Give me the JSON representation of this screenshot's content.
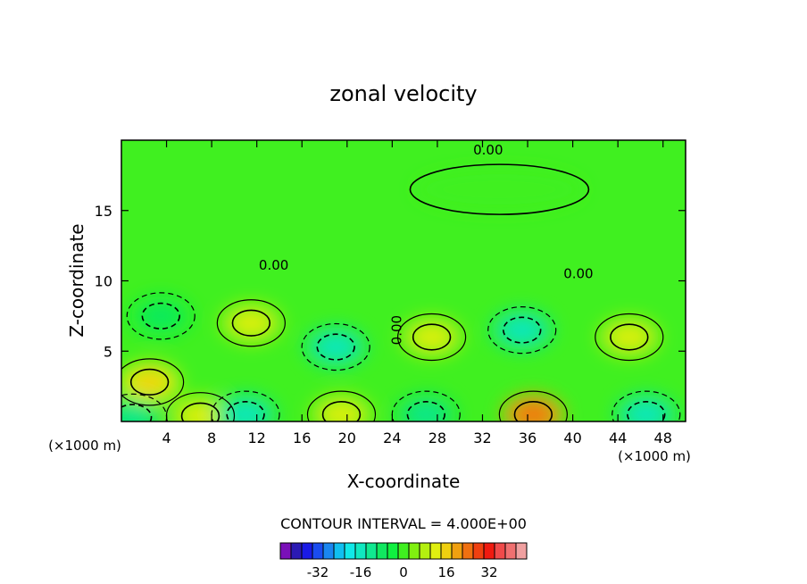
{
  "chart_data": {
    "type": "heatmap",
    "title": "zonal velocity",
    "xlabel": "X-coordinate",
    "ylabel": "Z-coordinate",
    "x_unit": "(×1000 m)",
    "xlim": [
      0,
      50
    ],
    "ylim": [
      0,
      20
    ],
    "x_ticks": [
      4,
      8,
      12,
      16,
      20,
      24,
      28,
      32,
      36,
      40,
      44,
      48
    ],
    "y_ticks": [
      5,
      10,
      15
    ],
    "contour_labels": [
      {
        "text": "0.00",
        "x": 32.5,
        "y": 19.0
      },
      {
        "text": "0.00",
        "x": 13.5,
        "y": 10.8
      },
      {
        "text": "0.00",
        "x": 40.5,
        "y": 10.2
      },
      {
        "text": "0.00",
        "x": 24.8,
        "y": 6.5
      }
    ],
    "features": [
      {
        "kind": "max",
        "x": 11.5,
        "y": 7.0,
        "value": 8
      },
      {
        "kind": "max",
        "x": 27.5,
        "y": 6.0,
        "value": 8
      },
      {
        "kind": "max",
        "x": 45.0,
        "y": 6.0,
        "value": 8
      },
      {
        "kind": "max",
        "x": 2.5,
        "y": 2.8,
        "value": 12
      },
      {
        "kind": "max",
        "x": 36.5,
        "y": 0.5,
        "value": 20
      },
      {
        "kind": "max",
        "x": 19.5,
        "y": 0.5,
        "value": 8
      },
      {
        "kind": "max",
        "x": 7.0,
        "y": 0.4,
        "value": 8
      },
      {
        "kind": "min",
        "x": 19.0,
        "y": 5.3,
        "value": -12
      },
      {
        "kind": "min",
        "x": 35.5,
        "y": 6.5,
        "value": -12
      },
      {
        "kind": "min",
        "x": 3.5,
        "y": 7.5,
        "value": -4
      },
      {
        "kind": "min",
        "x": 46.5,
        "y": 0.5,
        "value": -12
      },
      {
        "kind": "min",
        "x": 11.0,
        "y": 0.5,
        "value": -12
      },
      {
        "kind": "min",
        "x": 27.0,
        "y": 0.5,
        "value": -8
      },
      {
        "kind": "min",
        "x": 1.0,
        "y": 0.3,
        "value": -8
      },
      {
        "kind": "zero",
        "x": 33.5,
        "y": 16.5,
        "value": 0
      }
    ],
    "legend": {
      "title": "CONTOUR INTERVAL = 4.000E+00",
      "interval": 4,
      "tick_labels": [
        "-32",
        "-16",
        "0",
        "16",
        "32"
      ],
      "tick_values": [
        -32,
        -16,
        0,
        16,
        32
      ],
      "colors": [
        "#7a10b8",
        "#2b1ab4",
        "#1a1ae6",
        "#1a4cf0",
        "#1a86f0",
        "#10bff0",
        "#10e8e8",
        "#10e8c0",
        "#10e890",
        "#10e860",
        "#10f040",
        "#40f020",
        "#80f010",
        "#b4f010",
        "#e0f010",
        "#f0d010",
        "#f0a010",
        "#f07010",
        "#f04010",
        "#f01a10",
        "#f04a4a",
        "#f07070",
        "#f0a0a0"
      ]
    }
  }
}
